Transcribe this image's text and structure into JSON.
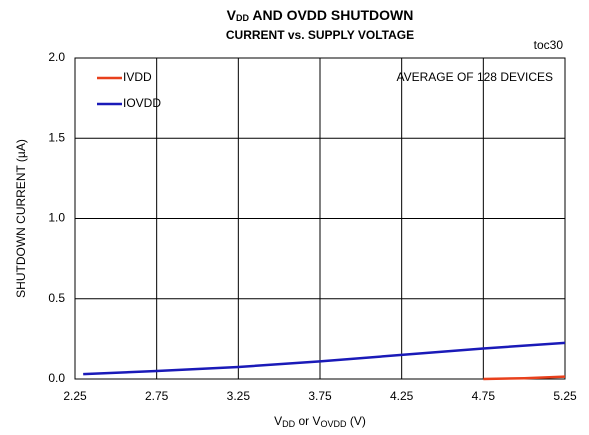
{
  "chart_data": {
    "type": "line",
    "title": {
      "line1": [
        "V",
        "DD",
        " AND OVDD SHUTDOWN"
      ],
      "line2": "CURRENT vs. SUPPLY VOLTAGE"
    },
    "figure_id": "toc30",
    "annotation": "AVERAGE OF 128 DEVICES",
    "x_label": [
      "V",
      "DD",
      " or V",
      "OVDD",
      " (V)"
    ],
    "y_label": "SHUTDOWN CURRENT (µA)",
    "xlim": [
      2.25,
      5.25
    ],
    "xticks": [
      2.25,
      2.75,
      3.25,
      3.75,
      4.25,
      4.75,
      5.25
    ],
    "ylim": [
      0,
      2.0
    ],
    "yticks": [
      {
        "value": 0,
        "label": "0.0"
      },
      0.5,
      {
        "value": 1,
        "label": "1.0"
      },
      1.5,
      {
        "value": 2,
        "label": "2.0"
      }
    ],
    "grid": true,
    "legend": "upper left",
    "series": [
      {
        "name": "IVDD",
        "color": "#e8401c",
        "x": [
          4.75,
          5.0,
          5.25
        ],
        "values": [
          0.0,
          0.005,
          0.015
        ]
      },
      {
        "name": "IOVDD",
        "color": "#1a1ab8",
        "x": [
          2.3,
          2.75,
          3.25,
          3.75,
          4.25,
          4.75,
          5.25
        ],
        "values": [
          0.03,
          0.05,
          0.075,
          0.11,
          0.15,
          0.19,
          0.225
        ]
      }
    ]
  }
}
